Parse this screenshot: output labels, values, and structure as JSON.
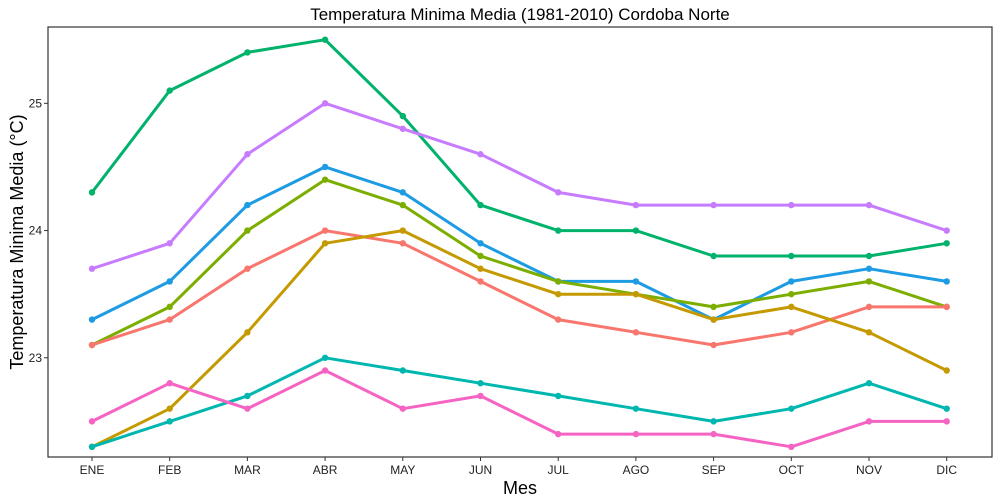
{
  "chart_data": {
    "type": "line",
    "title": "Temperatura Minima Media (1981-2010)  Cordoba Norte",
    "xlabel": "Mes",
    "ylabel": "Temperatura Minima Media  (°C)",
    "categories": [
      "ENE",
      "FEB",
      "MAR",
      "ABR",
      "MAY",
      "JUN",
      "JUL",
      "AGO",
      "SEP",
      "OCT",
      "NOV",
      "DIC"
    ],
    "yticks": [
      23,
      24,
      25
    ],
    "ylim": [
      22.22,
      25.6
    ],
    "grid": false,
    "legend": "none",
    "series": [
      {
        "color": "#00B26B",
        "values": [
          24.3,
          25.1,
          25.4,
          25.5,
          24.9,
          24.2,
          24.0,
          24.0,
          23.8,
          23.8,
          23.8,
          23.9
        ]
      },
      {
        "color": "#C77CFF",
        "values": [
          23.7,
          23.9,
          24.6,
          25.0,
          24.8,
          24.6,
          24.3,
          24.2,
          24.2,
          24.2,
          24.2,
          24.0
        ]
      },
      {
        "color": "#1D9BE3",
        "values": [
          23.3,
          23.6,
          24.2,
          24.5,
          24.3,
          23.9,
          23.6,
          23.6,
          23.3,
          23.6,
          23.7,
          23.6
        ]
      },
      {
        "color": "#7CAE00",
        "values": [
          23.1,
          23.4,
          24.0,
          24.4,
          24.2,
          23.8,
          23.6,
          23.5,
          23.4,
          23.5,
          23.6,
          23.4
        ]
      },
      {
        "color": "#F8766D",
        "values": [
          23.1,
          23.3,
          23.7,
          24.0,
          23.9,
          23.6,
          23.3,
          23.2,
          23.1,
          23.2,
          23.4,
          23.4
        ]
      },
      {
        "color": "#C49A00",
        "values": [
          22.3,
          22.6,
          23.2,
          23.9,
          24.0,
          23.7,
          23.5,
          23.5,
          23.3,
          23.4,
          23.2,
          22.9
        ]
      },
      {
        "color": "#00B7B0",
        "values": [
          22.3,
          22.5,
          22.7,
          23.0,
          22.9,
          22.8,
          22.7,
          22.6,
          22.5,
          22.6,
          22.8,
          22.6
        ]
      },
      {
        "color": "#F564C3",
        "values": [
          22.5,
          22.8,
          22.6,
          22.9,
          22.6,
          22.7,
          22.4,
          22.4,
          22.4,
          22.3,
          22.5,
          22.5
        ]
      }
    ]
  }
}
